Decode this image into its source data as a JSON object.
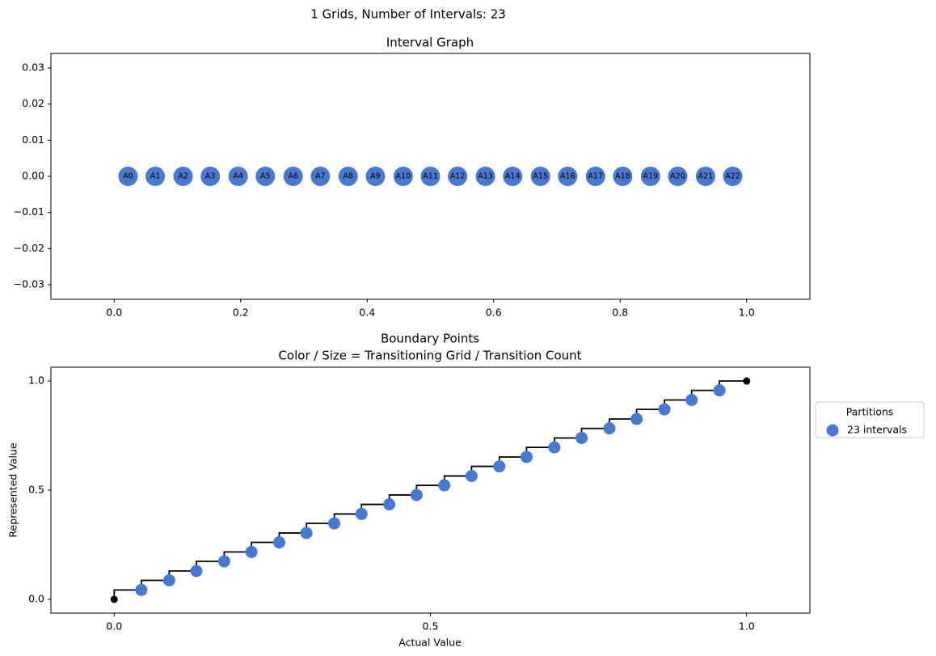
{
  "chart_data": [
    {
      "type": "scatter",
      "title": "1 Grids, Number of Intervals: 23",
      "subtitle": "Interval Graph",
      "labels": [
        "A0",
        "A1",
        "A2",
        "A3",
        "A4",
        "A5",
        "A6",
        "A7",
        "A8",
        "A9",
        "A10",
        "A11",
        "A12",
        "A13",
        "A14",
        "A15",
        "A16",
        "A17",
        "A18",
        "A19",
        "A20",
        "A21",
        "A22"
      ],
      "x": [
        0.022,
        0.065,
        0.109,
        0.152,
        0.196,
        0.239,
        0.283,
        0.326,
        0.37,
        0.413,
        0.457,
        0.5,
        0.543,
        0.587,
        0.63,
        0.674,
        0.717,
        0.761,
        0.804,
        0.848,
        0.891,
        0.935,
        0.978
      ],
      "values": [
        0,
        0,
        0,
        0,
        0,
        0,
        0,
        0,
        0,
        0,
        0,
        0,
        0,
        0,
        0,
        0,
        0,
        0,
        0,
        0,
        0,
        0,
        0
      ],
      "color": "#4a78cf",
      "xlim": [
        -0.1,
        1.1
      ],
      "xticks": [
        {
          "value": 0,
          "label": "0.0"
        },
        0.2,
        0.4,
        0.6,
        0.8,
        {
          "value": 1,
          "label": "1.0"
        }
      ],
      "ylim": [
        -0.034,
        0.034
      ],
      "yticks": [
        {
          "value": -0.03,
          "label": "−0.03"
        },
        {
          "value": -0.02,
          "label": "−0.02"
        },
        {
          "value": -0.01,
          "label": "−0.01"
        },
        {
          "value": 0,
          "label": "0.00"
        },
        0.01,
        0.02,
        0.03
      ]
    },
    {
      "type": "scatter",
      "title": "Boundary Points",
      "subtitle": "Color / Size = Transitioning Grid / Transition Count",
      "x_label": "Actual Value",
      "y_label": "Represented Value",
      "legend_title": "Partitions",
      "legend": "right",
      "series": [
        {
          "name": "23 intervals",
          "color": "#4a78cf",
          "x": [
            0.043,
            0.087,
            0.13,
            0.174,
            0.217,
            0.261,
            0.304,
            0.348,
            0.391,
            0.435,
            0.478,
            0.522,
            0.565,
            0.609,
            0.652,
            0.696,
            0.739,
            0.783,
            0.826,
            0.87,
            0.913,
            0.957
          ],
          "values": [
            0.043,
            0.087,
            0.13,
            0.174,
            0.217,
            0.261,
            0.304,
            0.348,
            0.391,
            0.435,
            0.478,
            0.522,
            0.565,
            0.609,
            0.652,
            0.696,
            0.739,
            0.783,
            0.826,
            0.87,
            0.913,
            0.957
          ]
        }
      ],
      "step_line": {
        "color": "#000000",
        "where": "pre",
        "x": [
          0,
          0.043,
          0.087,
          0.13,
          0.174,
          0.217,
          0.261,
          0.304,
          0.348,
          0.391,
          0.435,
          0.478,
          0.522,
          0.565,
          0.609,
          0.652,
          0.696,
          0.739,
          0.783,
          0.826,
          0.87,
          0.913,
          0.957,
          1
        ],
        "values": [
          0,
          0.043,
          0.087,
          0.13,
          0.174,
          0.217,
          0.261,
          0.304,
          0.348,
          0.391,
          0.435,
          0.478,
          0.522,
          0.565,
          0.609,
          0.652,
          0.696,
          0.739,
          0.783,
          0.826,
          0.87,
          0.913,
          0.957,
          1
        ]
      },
      "endpoints": {
        "color": "#000000",
        "x": [
          0,
          1
        ],
        "values": [
          0,
          1
        ]
      },
      "xlim": [
        -0.1,
        1.1
      ],
      "xticks": [
        {
          "value": 0,
          "label": "0.0"
        },
        0.5,
        {
          "value": 1,
          "label": "1.0"
        }
      ],
      "ylim": [
        -0.063,
        1.063
      ],
      "yticks": [
        {
          "value": 0,
          "label": "0.0"
        },
        0.5,
        {
          "value": 1,
          "label": "1.0"
        }
      ]
    }
  ]
}
